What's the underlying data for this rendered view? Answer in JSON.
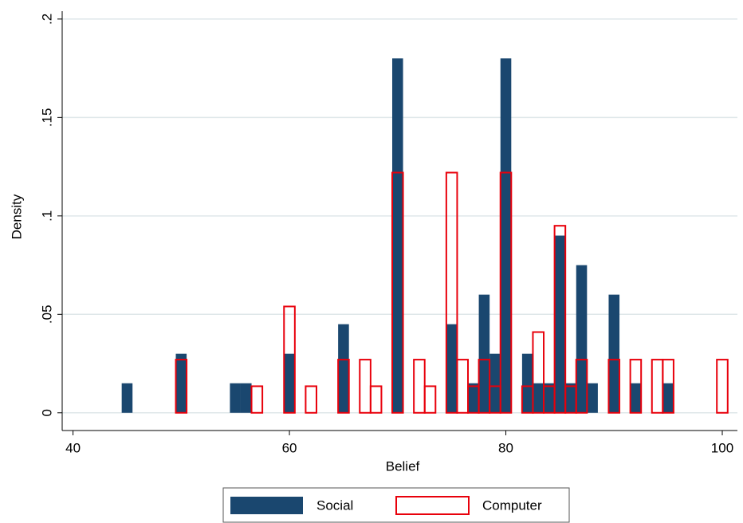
{
  "chart_data": {
    "type": "histogram",
    "x_label": "Belief",
    "y_label": "Density",
    "xlim": [
      39,
      101.4
    ],
    "xticks": [
      40,
      60,
      80,
      100
    ],
    "ylim": [
      -0.009,
      0.204
    ],
    "yticks": [
      0,
      {
        "value": 0.05,
        "label": ".05"
      },
      {
        "value": 0.1,
        "label": ".1"
      },
      {
        "value": 0.15,
        "label": ".15"
      },
      {
        "value": 0.2,
        "label": ".2"
      }
    ],
    "grid": true,
    "legend": "bottom",
    "series": [
      {
        "name": "Social",
        "color": "#1a476f",
        "style": "filled",
        "x": [
          45,
          50,
          55,
          56,
          60,
          65,
          70,
          75,
          77,
          78,
          79,
          80,
          82,
          83,
          84,
          85,
          86,
          87,
          88,
          90,
          92,
          95
        ],
        "values": [
          0.015,
          0.03,
          0.015,
          0.015,
          0.03,
          0.045,
          0.18,
          0.045,
          0.015,
          0.06,
          0.03,
          0.18,
          0.03,
          0.015,
          0.015,
          0.09,
          0.015,
          0.075,
          0.015,
          0.06,
          0.015,
          0.015
        ]
      },
      {
        "name": "Computer",
        "color": "#e8000b",
        "style": "outline",
        "x": [
          50,
          57,
          60,
          62,
          65,
          67,
          68,
          70,
          72,
          73,
          75,
          76,
          77,
          78,
          79,
          80,
          82,
          83,
          84,
          85,
          86,
          87,
          90,
          92,
          94,
          95,
          100
        ],
        "values": [
          0.027,
          0.0135,
          0.054,
          0.0135,
          0.027,
          0.027,
          0.0135,
          0.122,
          0.027,
          0.0135,
          0.122,
          0.027,
          0.0135,
          0.027,
          0.0135,
          0.122,
          0.0135,
          0.041,
          0.0135,
          0.095,
          0.0135,
          0.027,
          0.027,
          0.027,
          0.027,
          0.027,
          0.027
        ]
      }
    ]
  }
}
